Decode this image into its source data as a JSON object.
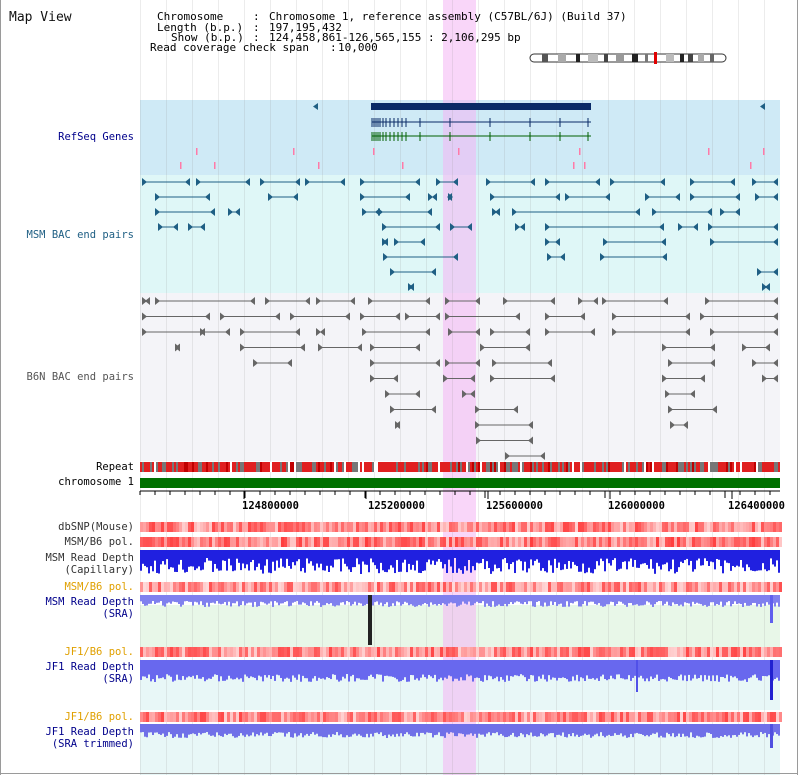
{
  "title": "Map View",
  "info": {
    "chromosome_key": "Chromosome",
    "chromosome_value": "Chromosome 1, reference assembly (C57BL/6J) (Build 37)",
    "length_key": "Length (b.p.)",
    "length_value": "197,195,432",
    "show_key": "Show (b.p.)",
    "show_value": "124,458,861-126,565,155 : 2,106,295 bp",
    "coverage_key": "Read coverage check span",
    "coverage_value": "10,000"
  },
  "tracks": {
    "refseq": "RefSeq Genes",
    "msm_bac": "MSM BAC end pairs",
    "b6n_bac": "B6N BAC end pairs",
    "repeat": "Repeat",
    "chromosome": "chromosome 1",
    "dbsnp": "dbSNP(Mouse)",
    "msm_b6_pol_1": "MSM/B6 pol.",
    "msm_depth_cap": "MSM Read Depth\n(Capillary)",
    "msm_b6_pol_2": "MSM/B6 pol.",
    "msm_depth_sra": "MSM Read Depth\n(SRA)",
    "jf1_b6_pol_1": "JF1/B6 pol.",
    "jf1_depth_sra": "JF1 Read Depth\n(SRA)",
    "jf1_b6_pol_2": "JF1/B6 pol.",
    "jf1_depth_trim": "JF1 Read Depth\n(SRA trimmed)"
  },
  "axis": {
    "ticks": [
      "124800000",
      "125200000",
      "125600000",
      "126000000",
      "126400000"
    ]
  },
  "colors": {
    "refseq_label": "#00008b",
    "msm_label": "#1f5f84",
    "b6n_label": "#555555",
    "pol_label_orange": "#e0a000",
    "depth_label_blue": "#00008b",
    "chromosome_bar": "#007000",
    "highlight": "#f5c8f5",
    "refseq_bg": "#cfeaf6",
    "msm_bg": "#dff7f7",
    "b6n_bg": "#f3f3f8"
  }
}
